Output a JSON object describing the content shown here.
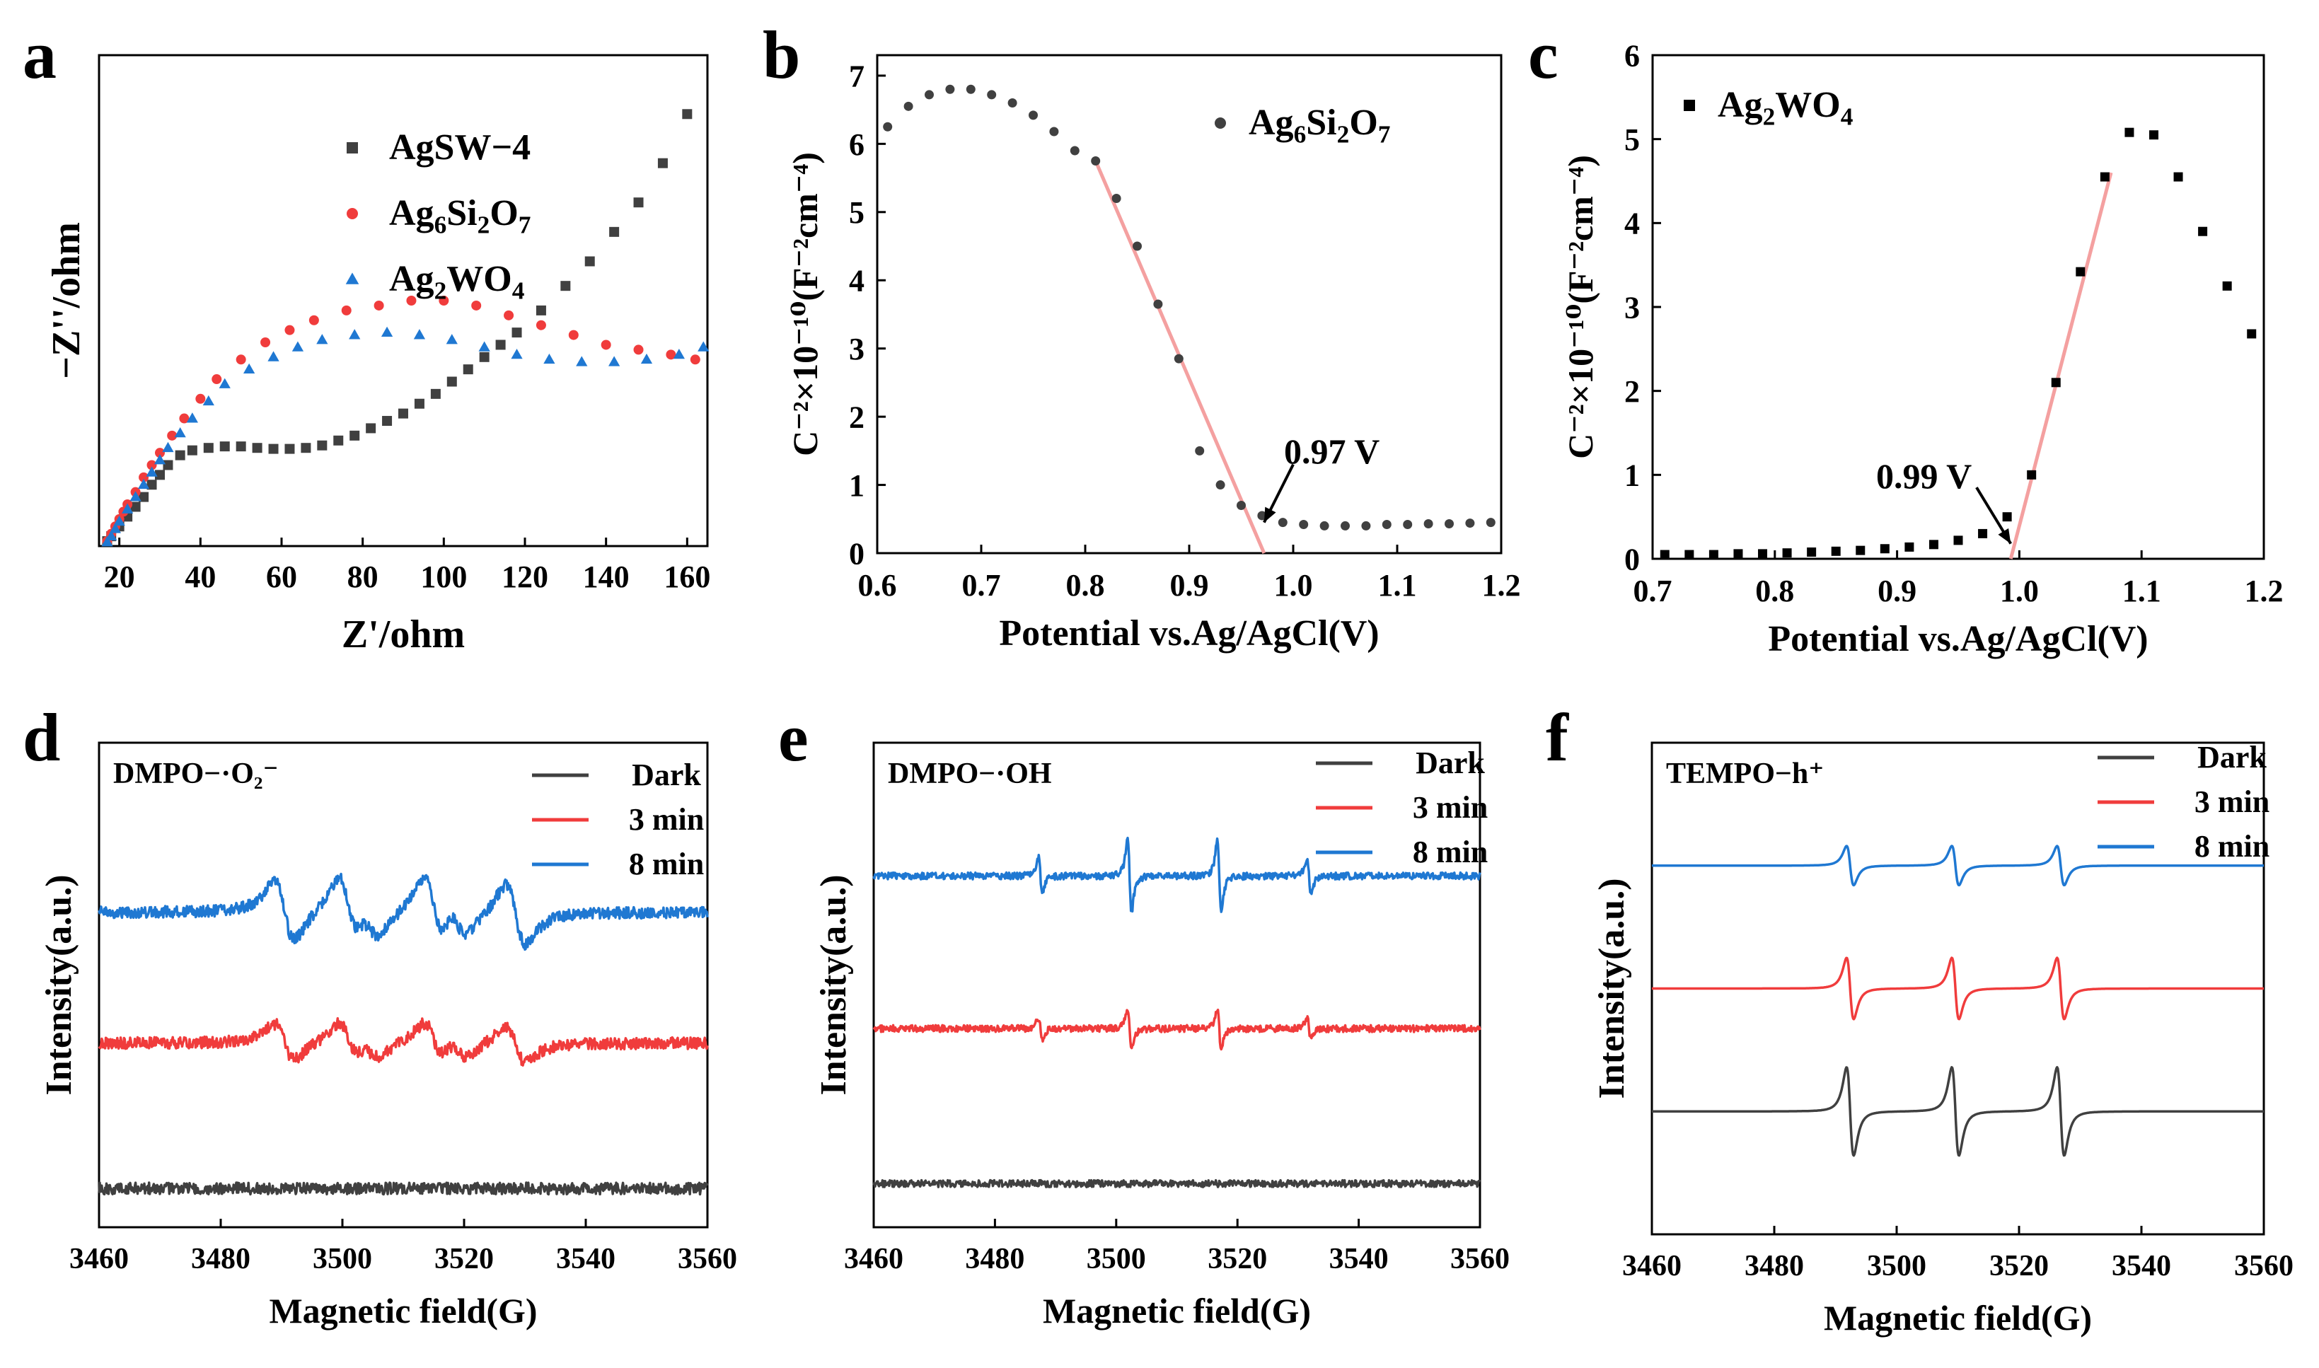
{
  "chart_data": [
    {
      "panel": "a",
      "type": "scatter",
      "xlabel": "Z'/ohm",
      "ylabel": "−Z''/ohm",
      "xlim": [
        15,
        165
      ],
      "ylim": [
        0,
        100
      ],
      "xticks": [
        20,
        40,
        60,
        80,
        100,
        120,
        140,
        160
      ],
      "yticks_shown": false,
      "legend_position": "top-center",
      "series": [
        {
          "name": "AgSW−4",
          "label_parts": [
            [
              "AgSW−4",
              ""
            ]
          ],
          "color": "#404040",
          "marker": "square",
          "x": [
            17,
            18,
            20,
            22,
            24,
            26,
            28,
            30,
            32,
            35,
            38,
            42,
            46,
            50,
            54,
            58,
            62,
            66,
            70,
            74,
            78,
            82,
            86,
            90,
            94,
            98,
            102,
            106,
            110,
            114,
            118,
            124,
            130,
            136,
            142,
            148,
            154,
            160
          ],
          "y": [
            1,
            2,
            4,
            6,
            8,
            10,
            12.5,
            14.5,
            16.5,
            18.5,
            19.5,
            20,
            20.3,
            20.3,
            20,
            19.8,
            19.8,
            20,
            20.5,
            21.5,
            22.5,
            24,
            25.5,
            27,
            29,
            31,
            33.5,
            36,
            38.5,
            41,
            43.5,
            48,
            53,
            58,
            64,
            70,
            78,
            88
          ]
        },
        {
          "name": "Ag6Si2O7",
          "label_parts": [
            [
              "Ag",
              ""
            ],
            [
              "6",
              "sub"
            ],
            [
              "Si",
              ""
            ],
            [
              "2",
              "sub"
            ],
            [
              "O",
              ""
            ],
            [
              "7",
              "sub"
            ]
          ],
          "color": "#f03c3c",
          "marker": "circle",
          "x": [
            17,
            18,
            19,
            20,
            21,
            22,
            24,
            26,
            28,
            30,
            33,
            36,
            40,
            44,
            50,
            56,
            62,
            68,
            76,
            84,
            92,
            100,
            108,
            116,
            124,
            132,
            140,
            148,
            156,
            162
          ],
          "y": [
            1,
            2.5,
            4,
            5.5,
            7,
            8.5,
            11,
            14,
            16.5,
            19,
            22.5,
            26,
            30,
            34,
            38,
            41.5,
            44,
            46,
            48,
            49,
            50,
            50,
            49,
            47,
            45,
            43,
            41,
            40,
            39,
            38
          ]
        },
        {
          "name": "Ag2WO4",
          "label_parts": [
            [
              "Ag",
              ""
            ],
            [
              "2",
              "sub"
            ],
            [
              "WO",
              ""
            ],
            [
              "4",
              "sub"
            ]
          ],
          "color": "#1f78d2",
          "marker": "triangle",
          "x": [
            17,
            18,
            19,
            20,
            22,
            24,
            26,
            28,
            30,
            32,
            35,
            38,
            42,
            46,
            52,
            58,
            64,
            70,
            78,
            86,
            94,
            102,
            110,
            118,
            126,
            134,
            142,
            150,
            158,
            164
          ],
          "y": [
            0.8,
            2,
            3.5,
            5,
            7.5,
            10,
            12.5,
            15,
            17.5,
            20,
            23,
            26,
            29.5,
            33,
            36,
            38.5,
            40.5,
            42,
            43,
            43.5,
            43,
            42,
            40.5,
            39,
            38,
            37.5,
            37.5,
            38,
            39,
            40.5
          ]
        }
      ]
    },
    {
      "panel": "b",
      "type": "scatter",
      "xlabel": "Potential vs.Ag/AgCl(V)",
      "ylabel": "C⁻²×10⁻¹⁰(F⁻²cm⁻⁴)",
      "xlim": [
        0.6,
        1.2
      ],
      "ylim": [
        0,
        7.3
      ],
      "xticks": [
        "0.6",
        "0.7",
        "0.8",
        "0.9",
        "1.0",
        "1.1",
        "1.2"
      ],
      "yticks": [
        "0",
        "1",
        "2",
        "3",
        "4",
        "5",
        "6",
        "7"
      ],
      "legend_position": "top-right",
      "series": [
        {
          "name": "Ag6Si2O7",
          "label_parts": [
            [
              "Ag",
              ""
            ],
            [
              "6",
              "sub"
            ],
            [
              "Si",
              ""
            ],
            [
              "2",
              "sub"
            ],
            [
              "O",
              ""
            ],
            [
              "7",
              "sub"
            ]
          ],
          "color": "#404040",
          "marker": "circle",
          "x": [
            0.61,
            0.63,
            0.65,
            0.67,
            0.69,
            0.71,
            0.73,
            0.75,
            0.77,
            0.79,
            0.81,
            0.83,
            0.85,
            0.87,
            0.89,
            0.91,
            0.93,
            0.95,
            0.97,
            0.99,
            1.01,
            1.03,
            1.05,
            1.07,
            1.09,
            1.11,
            1.13,
            1.15,
            1.17,
            1.19
          ],
          "y": [
            6.25,
            6.55,
            6.72,
            6.8,
            6.8,
            6.72,
            6.6,
            6.42,
            6.18,
            5.9,
            5.75,
            5.2,
            4.5,
            3.65,
            2.85,
            1.5,
            1.0,
            0.7,
            0.55,
            0.45,
            0.42,
            0.4,
            0.4,
            0.4,
            0.42,
            0.42,
            0.43,
            0.43,
            0.44,
            0.45
          ]
        }
      ],
      "fit_line": {
        "x": [
          0.81,
          0.972
        ],
        "y": [
          5.75,
          0.0
        ],
        "color": "#f4a0a0"
      },
      "annotation": {
        "text": "0.97 V",
        "arrow_from": [
          1.0,
          1.3
        ],
        "arrow_to": [
          0.972,
          0.45
        ]
      }
    },
    {
      "panel": "c",
      "type": "scatter",
      "xlabel": "Potential vs.Ag/AgCl(V)",
      "ylabel": "C⁻²×10⁻¹⁰(F⁻²cm⁻⁴)",
      "xlim": [
        0.7,
        1.2
      ],
      "ylim": [
        0,
        6
      ],
      "xticks": [
        "0.7",
        "0.8",
        "0.9",
        "1.0",
        "1.1",
        "1.2"
      ],
      "yticks": [
        "0",
        "1",
        "2",
        "3",
        "4",
        "5",
        "6"
      ],
      "legend_position": "top-left",
      "series": [
        {
          "name": "Ag2WO4",
          "label_parts": [
            [
              "Ag",
              ""
            ],
            [
              "2",
              "sub"
            ],
            [
              "WO",
              ""
            ],
            [
              "4",
              "sub"
            ]
          ],
          "color": "#000000",
          "marker": "square",
          "x": [
            0.71,
            0.73,
            0.75,
            0.77,
            0.79,
            0.81,
            0.83,
            0.85,
            0.87,
            0.89,
            0.91,
            0.93,
            0.95,
            0.97,
            0.99,
            1.01,
            1.03,
            1.05,
            1.07,
            1.09,
            1.11,
            1.13,
            1.15,
            1.17,
            1.19
          ],
          "y": [
            0.05,
            0.05,
            0.05,
            0.06,
            0.06,
            0.07,
            0.08,
            0.09,
            0.1,
            0.12,
            0.14,
            0.17,
            0.22,
            0.3,
            0.5,
            1.0,
            2.1,
            3.42,
            4.55,
            5.08,
            5.05,
            4.55,
            3.9,
            3.25,
            2.68
          ]
        }
      ],
      "fit_line": {
        "x": [
          0.993,
          1.075
        ],
        "y": [
          0.0,
          4.6
        ],
        "color": "#f4a0a0"
      },
      "annotation": {
        "text": "0.99 V",
        "arrow_from": [
          0.965,
          0.85
        ],
        "arrow_to": [
          0.993,
          0.18
        ]
      }
    },
    {
      "panel": "d",
      "type": "line",
      "title": "DMPO−·O₂⁻",
      "xlabel": "Magnetic field(G)",
      "ylabel": "Intensity(a.u.)",
      "xlim": [
        3460,
        3560
      ],
      "ylim": [
        0,
        10
      ],
      "xticks": [
        "3460",
        "3480",
        "3500",
        "3520",
        "3540",
        "3560"
      ],
      "legend_position": "top-right",
      "signal": "superoxide",
      "series": [
        {
          "name": "Dark",
          "color": "#404040",
          "baseline": 0.8,
          "amplitude": 0,
          "noise": 0.12
        },
        {
          "name": "3 min",
          "color": "#f03c3c",
          "baseline": 3.8,
          "amplitude": 0.75,
          "noise": 0.12
        },
        {
          "name": "8 min",
          "color": "#1f78d2",
          "baseline": 6.5,
          "amplitude": 1.25,
          "noise": 0.12
        }
      ]
    },
    {
      "panel": "e",
      "type": "line",
      "title": "DMPO−·OH",
      "xlabel": "Magnetic field(G)",
      "ylabel": "Intensity(a.u.)",
      "xlim": [
        3460,
        3560
      ],
      "ylim": [
        0,
        10
      ],
      "xticks": [
        "3460",
        "3480",
        "3500",
        "3520",
        "3540",
        "3560"
      ],
      "legend_position": "top-right",
      "signal": "hydroxyl",
      "series": [
        {
          "name": "Dark",
          "color": "#404040",
          "baseline": 0.9,
          "amplitude": 0,
          "noise": 0.07
        },
        {
          "name": "3 min",
          "color": "#f03c3c",
          "baseline": 4.1,
          "amplitude": 0.85,
          "noise": 0.07
        },
        {
          "name": "8 min",
          "color": "#1f78d2",
          "baseline": 7.25,
          "amplitude": 1.5,
          "noise": 0.07
        }
      ]
    },
    {
      "panel": "f",
      "type": "line",
      "title": "TEMPO−h⁺",
      "xlabel": "Magnetic field(G)",
      "ylabel": "Intensity(a.u.)",
      "xlim": [
        3460,
        3560
      ],
      "ylim": [
        0,
        10
      ],
      "xticks": [
        "3460",
        "3480",
        "3500",
        "3520",
        "3540",
        "3560"
      ],
      "legend_position": "top-right",
      "signal": "tempo",
      "series": [
        {
          "name": "Dark",
          "color": "#404040",
          "baseline": 2.5,
          "amplitude": 1.8,
          "noise": 0
        },
        {
          "name": "3 min",
          "color": "#f03c3c",
          "baseline": 5.0,
          "amplitude": 1.25,
          "noise": 0
        },
        {
          "name": "8 min",
          "color": "#1f78d2",
          "baseline": 7.5,
          "amplitude": 0.8,
          "noise": 0
        }
      ]
    }
  ]
}
